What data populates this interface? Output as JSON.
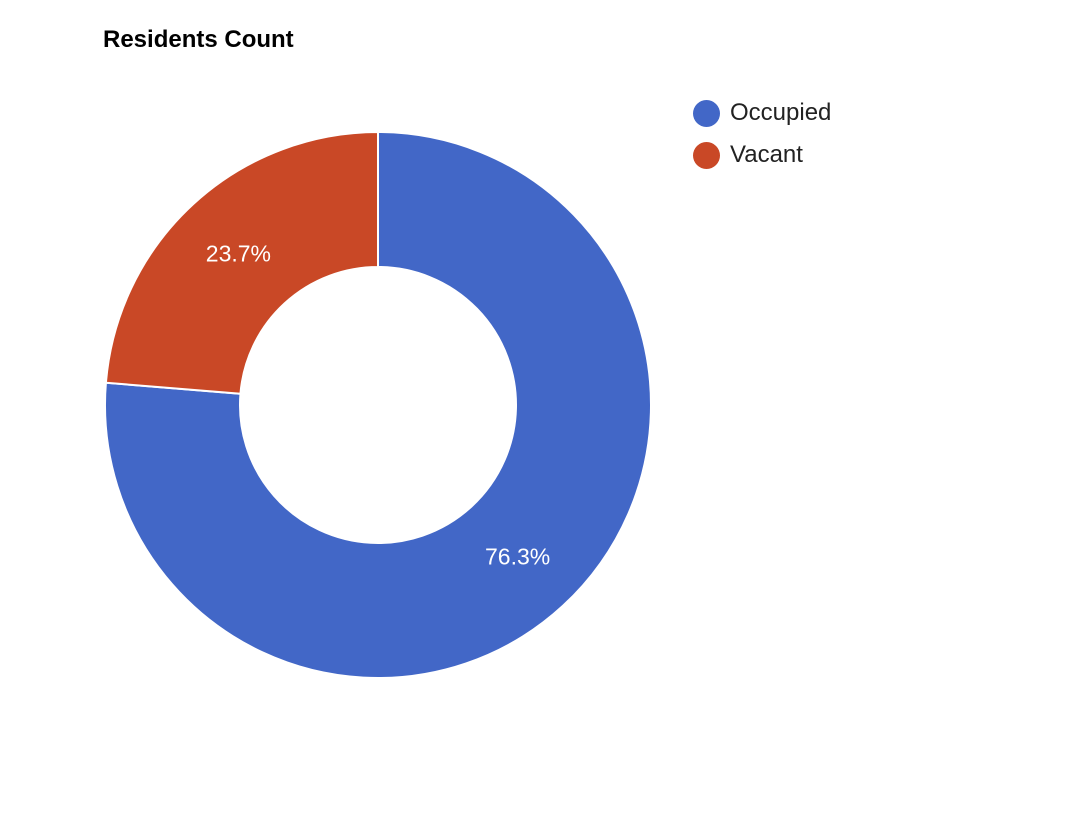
{
  "chart_data": {
    "type": "pie",
    "title": "Residents Count",
    "donut": true,
    "slices": [
      {
        "label": "Occupied",
        "percent": 76.3,
        "value_label": "76.3%",
        "color": "#4267c7"
      },
      {
        "label": "Vacant",
        "percent": 23.7,
        "value_label": "23.7%",
        "color": "#c94826"
      }
    ],
    "legend": {
      "position": "right",
      "items": [
        {
          "label": "Occupied",
          "color": "#4267c7"
        },
        {
          "label": "Vacant",
          "color": "#c94826"
        }
      ]
    }
  }
}
